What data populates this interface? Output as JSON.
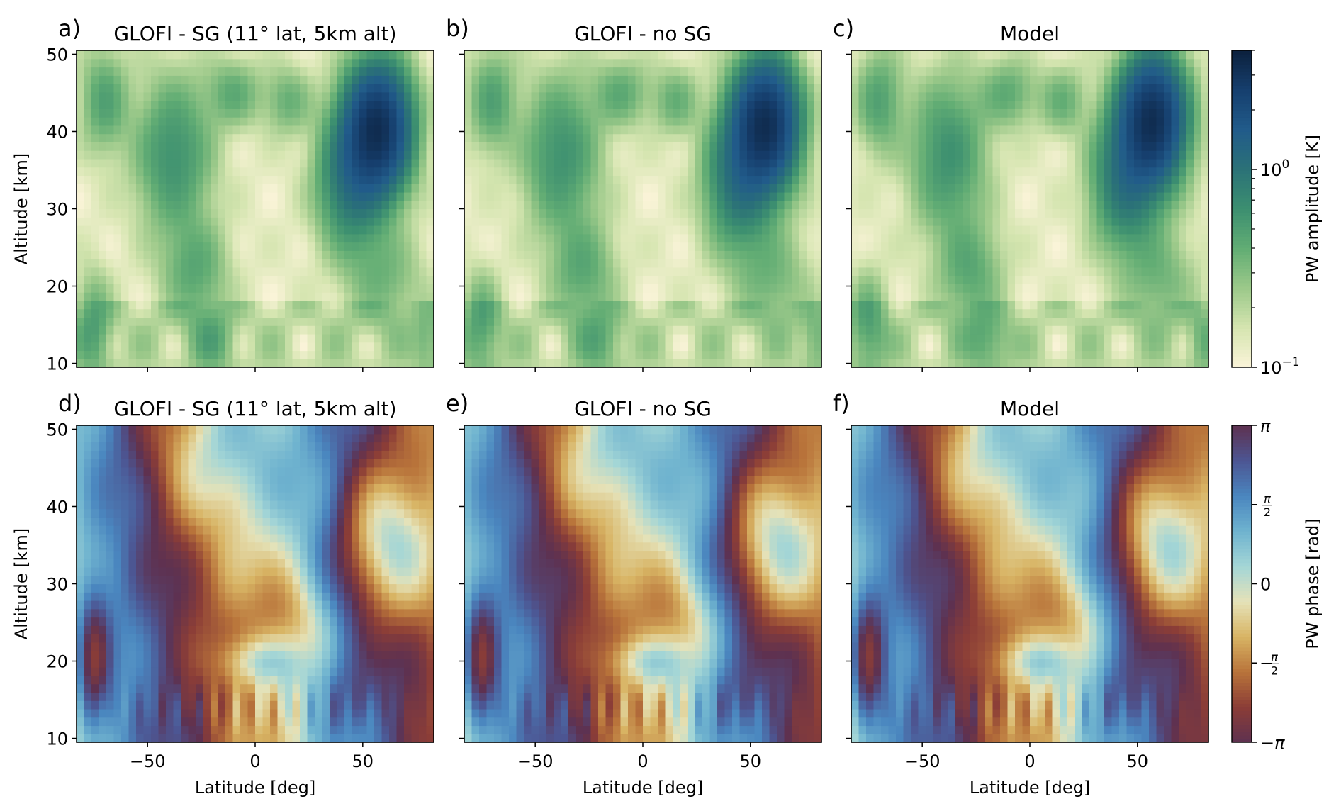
{
  "chart_data": [
    {
      "type": "heatmap",
      "panel_letter": "a)",
      "title": "GLOFI - SG (11° lat, 5km alt)",
      "ylabel": "Altitude [km]",
      "xlabel": "",
      "xlim": [
        -83,
        83
      ],
      "ylim": [
        9.5,
        50.5
      ],
      "xticks": [
        -50,
        0,
        50
      ],
      "yticks": [
        10,
        20,
        30,
        40,
        50
      ],
      "colorscale": "amplitude",
      "features": [
        {
          "name": "upper-left-lobe",
          "lat": -35,
          "alt": 36,
          "value": 0.55
        },
        {
          "name": "right-maximum",
          "lat": 57,
          "alt": 41,
          "value": 3.2
        },
        {
          "name": "center-minimum",
          "lat": 5,
          "alt": 25,
          "value": 0.1
        }
      ]
    },
    {
      "type": "heatmap",
      "panel_letter": "b)",
      "title": "GLOFI - no SG",
      "ylabel": "",
      "xlabel": "",
      "xlim": [
        -83,
        83
      ],
      "ylim": [
        9.5,
        50.5
      ],
      "xticks": [
        -50,
        0,
        50
      ],
      "yticks": [
        10,
        20,
        30,
        40,
        50
      ],
      "colorscale": "amplitude",
      "features": [
        {
          "name": "upper-left-lobe",
          "lat": -35,
          "alt": 36,
          "value": 0.55
        },
        {
          "name": "right-maximum",
          "lat": 57,
          "alt": 40,
          "value": 3.3
        },
        {
          "name": "center-minimum",
          "lat": 5,
          "alt": 25,
          "value": 0.1
        }
      ]
    },
    {
      "type": "heatmap",
      "panel_letter": "c)",
      "title": "Model",
      "ylabel": "",
      "xlabel": "",
      "xlim": [
        -83,
        83
      ],
      "ylim": [
        9.5,
        50.5
      ],
      "xticks": [
        -50,
        0,
        50
      ],
      "yticks": [
        10,
        20,
        30,
        40,
        50
      ],
      "colorscale": "amplitude",
      "features": [
        {
          "name": "upper-left-lobe",
          "lat": -35,
          "alt": 36,
          "value": 0.55
        },
        {
          "name": "right-maximum",
          "lat": 57,
          "alt": 42,
          "value": 3.5
        },
        {
          "name": "center-minimum",
          "lat": 5,
          "alt": 25,
          "value": 0.1
        }
      ]
    },
    {
      "type": "heatmap",
      "panel_letter": "d)",
      "title": "GLOFI - SG (11° lat, 5km alt)",
      "ylabel": "Altitude [km]",
      "xlabel": "Latitude [deg]",
      "xlim": [
        -83,
        83
      ],
      "ylim": [
        9.5,
        50.5
      ],
      "xticks": [
        -50,
        0,
        50
      ],
      "yticks": [
        10,
        20,
        30,
        40,
        50
      ],
      "colorscale": "phase"
    },
    {
      "type": "heatmap",
      "panel_letter": "e)",
      "title": "GLOFI - no SG",
      "ylabel": "",
      "xlabel": "Latitude [deg]",
      "xlim": [
        -83,
        83
      ],
      "ylim": [
        9.5,
        50.5
      ],
      "xticks": [
        -50,
        0,
        50
      ],
      "yticks": [
        10,
        20,
        30,
        40,
        50
      ],
      "colorscale": "phase"
    },
    {
      "type": "heatmap",
      "panel_letter": "f)",
      "title": "Model",
      "ylabel": "",
      "xlabel": "Latitude [deg]",
      "xlim": [
        -83,
        83
      ],
      "ylim": [
        9.5,
        50.5
      ],
      "xticks": [
        -50,
        0,
        50
      ],
      "yticks": [
        10,
        20,
        30,
        40,
        50
      ],
      "colorscale": "phase"
    }
  ],
  "colorbars": {
    "amplitude": {
      "label": "PW amplitude [K]",
      "scale": "log",
      "range": [
        0.1,
        4
      ],
      "ticks": [
        {
          "base": "10",
          "exp": "0",
          "value": 1
        },
        {
          "base": "10",
          "exp": "−1",
          "value": 0.1
        }
      ],
      "colors": [
        "#fbf4d9",
        "#d5e5b0",
        "#9cc98a",
        "#62ad74",
        "#3c8f70",
        "#2b7277",
        "#215b8a",
        "#163f6e",
        "#0c213d"
      ]
    },
    "phase": {
      "label": "PW phase [rad]",
      "scale": "linear",
      "range": [
        -3.1416,
        3.1416
      ],
      "ticks": [
        {
          "label": "π",
          "value": 3.1416
        },
        {
          "label": "π/2",
          "value": 1.5708
        },
        {
          "label": "0",
          "value": 0
        },
        {
          "label": "−π/2",
          "value": -1.5708
        },
        {
          "label": "−π",
          "value": -3.1416
        }
      ],
      "colors": [
        "#5e3150",
        "#8b3d37",
        "#b8733a",
        "#d8b464",
        "#e5e2b8",
        "#a4d6d6",
        "#6fb3cf",
        "#4a86bf",
        "#4c5693",
        "#5e3150"
      ]
    }
  }
}
